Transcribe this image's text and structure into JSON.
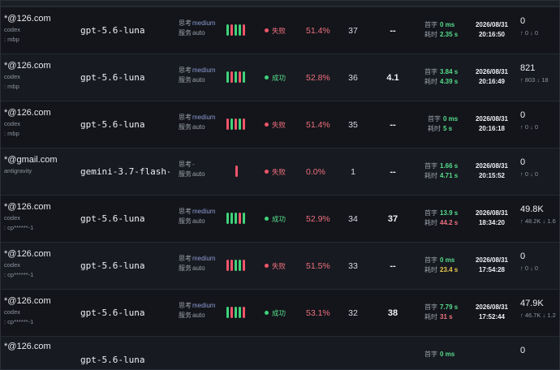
{
  "rows": [
    {
      "email": "*@126.com",
      "sub1": "codex",
      "sub2": ": mbp",
      "model": "gpt-5.6-luna",
      "think_k": "思考",
      "think_v": "medium",
      "svc_k": "服务",
      "svc_v": "auto",
      "bars": [
        "ok",
        "err",
        "ok",
        "ok",
        "err"
      ],
      "status": "fail",
      "status_label": "失败",
      "rate": "51.4%",
      "count": "37",
      "score": "--",
      "ttft_k": "首字",
      "ttft": "0 ms",
      "ttft_c": "g",
      "dur_k": "耗时",
      "dur": "2.35 s",
      "dur_c": "g",
      "date": "2026/08/31",
      "time": "20:16:50",
      "tokens": "0",
      "io": "↑ 0  ↓ 0"
    },
    {
      "email": "*@126.com",
      "sub1": "codex",
      "sub2": ": mbp",
      "model": "gpt-5.6-luna",
      "think_k": "思考",
      "think_v": "medium",
      "svc_k": "服务",
      "svc_v": "auto",
      "bars": [
        "ok",
        "err",
        "ok",
        "err",
        "ok"
      ],
      "status": "succ",
      "status_label": "成功",
      "rate": "52.8%",
      "count": "36",
      "score": "4.1",
      "ttft_k": "首字",
      "ttft": "3.84 s",
      "ttft_c": "g",
      "dur_k": "耗时",
      "dur": "4.39 s",
      "dur_c": "g",
      "date": "2026/08/31",
      "time": "20:16:49",
      "tokens": "821",
      "io": "↑ 803  ↓ 18"
    },
    {
      "email": "*@126.com",
      "sub1": "codex",
      "sub2": ": mbp",
      "model": "gpt-5.6-luna",
      "think_k": "思考",
      "think_v": "medium",
      "svc_k": "服务",
      "svc_v": "auto",
      "bars": [
        "err",
        "ok",
        "err",
        "ok",
        "err"
      ],
      "status": "fail",
      "status_label": "失败",
      "rate": "51.4%",
      "count": "35",
      "score": "--",
      "ttft_k": "首字",
      "ttft": "0 ms",
      "ttft_c": "g",
      "dur_k": "耗时",
      "dur": "5 s",
      "dur_c": "g",
      "date": "2026/08/31",
      "time": "20:16:18",
      "tokens": "0",
      "io": "↑ 0  ↓ 0"
    },
    {
      "email": "*@gmail.com",
      "sub1": "antigravity",
      "sub2": "",
      "model": "gemini-3.7-flash-…",
      "think_k": "思考",
      "think_v": "-",
      "svc_k": "服务",
      "svc_v": "auto",
      "bars": [
        "err"
      ],
      "status": "fail",
      "status_label": "失败",
      "rate": "0.0%",
      "count": "1",
      "score": "--",
      "ttft_k": "首字",
      "ttft": "1.66 s",
      "ttft_c": "g",
      "dur_k": "耗时",
      "dur": "4.71 s",
      "dur_c": "g",
      "date": "2026/08/31",
      "time": "20:15:52",
      "tokens": "0",
      "io": "↑ 0  ↓ 0"
    },
    {
      "email": "*@126.com",
      "sub1": "codex",
      "sub2": ": cp******-1",
      "model": "gpt-5.6-luna",
      "think_k": "思考",
      "think_v": "medium",
      "svc_k": "服务",
      "svc_v": "auto",
      "bars": [
        "ok",
        "ok",
        "ok",
        "err",
        "ok"
      ],
      "status": "succ",
      "status_label": "成功",
      "rate": "52.9%",
      "count": "34",
      "score": "37",
      "ttft_k": "首字",
      "ttft": "13.9 s",
      "ttft_c": "g",
      "dur_k": "耗时",
      "dur": "44.2 s",
      "dur_c": "r",
      "date": "2026/08/31",
      "time": "18:34:20",
      "tokens": "49.8K",
      "io": "↑ 48.2K  ↓ 1.6"
    },
    {
      "email": "*@126.com",
      "sub1": "codex",
      "sub2": ": cp******-1",
      "model": "gpt-5.6-luna",
      "think_k": "思考",
      "think_v": "medium",
      "svc_k": "服务",
      "svc_v": "auto",
      "bars": [
        "err",
        "err",
        "ok",
        "ok",
        "err"
      ],
      "status": "fail",
      "status_label": "失败",
      "rate": "51.5%",
      "count": "33",
      "score": "--",
      "ttft_k": "首字",
      "ttft": "0 ms",
      "ttft_c": "g",
      "dur_k": "耗时",
      "dur": "23.4 s",
      "dur_c": "y",
      "date": "2026/08/31",
      "time": "17:54:28",
      "tokens": "0",
      "io": "↑ 0  ↓ 0"
    },
    {
      "email": "*@126.com",
      "sub1": "codex",
      "sub2": ": cp******-1",
      "model": "gpt-5.6-luna",
      "think_k": "思考",
      "think_v": "medium",
      "svc_k": "服务",
      "svc_v": "auto",
      "bars": [
        "ok",
        "err",
        "ok",
        "ok",
        "err"
      ],
      "status": "succ",
      "status_label": "成功",
      "rate": "53.1%",
      "count": "32",
      "score": "38",
      "ttft_k": "首字",
      "ttft": "7.79 s",
      "ttft_c": "g",
      "dur_k": "耗时",
      "dur": "31 s",
      "dur_c": "r",
      "date": "2026/08/31",
      "time": "17:52:44",
      "tokens": "47.9K",
      "io": "↑ 46.7K  ↓ 1.2"
    },
    {
      "email": "*@126.com",
      "sub1": "",
      "sub2": "",
      "model": "gpt-5.6-luna",
      "think_k": "",
      "think_v": "",
      "svc_k": "",
      "svc_v": "",
      "bars": [],
      "status": "fail",
      "status_label": "",
      "rate": "",
      "count": "",
      "score": "",
      "ttft_k": "首字",
      "ttft": "0 ms",
      "ttft_c": "g",
      "dur_k": "",
      "dur": "",
      "dur_c": "g",
      "date": "",
      "time": "",
      "tokens": "0",
      "io": ""
    }
  ]
}
